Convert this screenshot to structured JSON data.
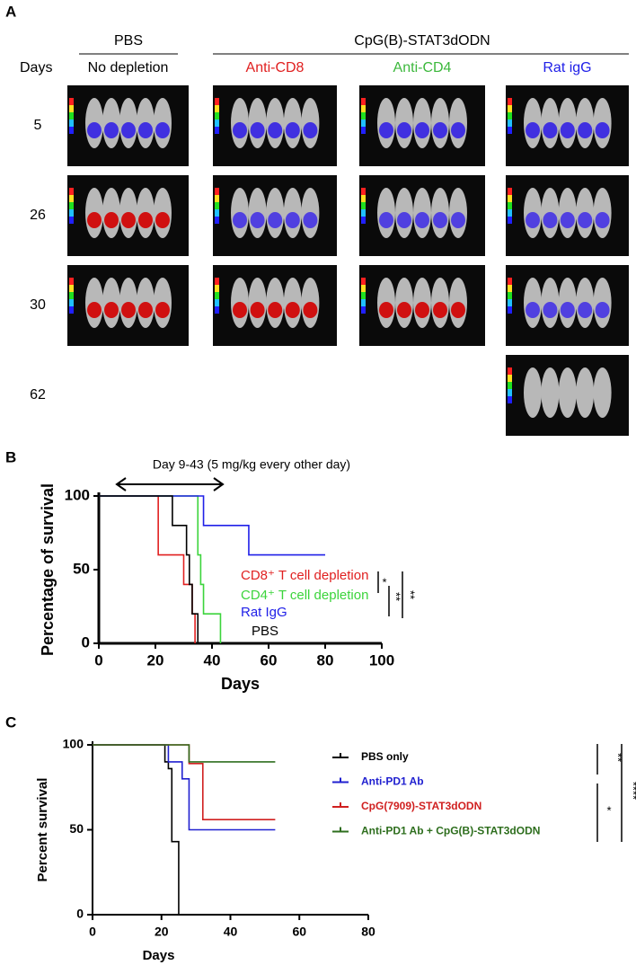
{
  "panel_a": {
    "label": "A",
    "group_left": "PBS",
    "group_right": "CpG(B)-STAT3dODN",
    "days_label": "Days",
    "columns": [
      {
        "name": "No depletion",
        "color": "#000000"
      },
      {
        "name": "Anti-CD8",
        "color": "#e02020"
      },
      {
        "name": "Anti-CD4",
        "color": "#3cb83c"
      },
      {
        "name": "Rat igG",
        "color": "#2020e8"
      }
    ],
    "days": [
      5,
      26,
      30,
      62
    ]
  },
  "chart_data": [
    {
      "type": "step",
      "panel_label": "B",
      "annotation": "Day 9-43 (5 mg/kg every other day)",
      "x_label": "Days",
      "y_label": "Percentage of survival",
      "xlim": [
        0,
        100
      ],
      "xticks": [
        0,
        20,
        40,
        60,
        80,
        100
      ],
      "ylim": [
        0,
        100
      ],
      "yticks": [
        0,
        50,
        100
      ],
      "series": [
        {
          "name": "CD8⁺ T cell depletion",
          "color": "#e02020",
          "x": [
            0,
            21,
            30,
            33,
            34
          ],
          "values": [
            100,
            60,
            40,
            20,
            0
          ]
        },
        {
          "name": "CD4⁺ T cell depletion",
          "color": "#3cd43c",
          "x": [
            0,
            35,
            36,
            37,
            43
          ],
          "values": [
            100,
            60,
            40,
            20,
            0
          ]
        },
        {
          "name": "Rat IgG",
          "color": "#2020e8",
          "x": [
            0,
            37,
            53,
            80
          ],
          "values": [
            100,
            80,
            60,
            60
          ]
        },
        {
          "name": "PBS",
          "color": "#000000",
          "x": [
            0,
            26,
            31,
            32,
            33,
            35
          ],
          "values": [
            100,
            80,
            60,
            40,
            20,
            0
          ]
        }
      ],
      "significance": [
        "*",
        "**",
        "**"
      ]
    },
    {
      "type": "step",
      "panel_label": "C",
      "x_label": "Days",
      "y_label": "Percent survival",
      "xlim": [
        0,
        80
      ],
      "xticks": [
        0,
        20,
        40,
        60,
        80
      ],
      "ylim": [
        0,
        100
      ],
      "yticks": [
        0,
        50,
        100
      ],
      "series": [
        {
          "name": "PBS only",
          "color": "#000000",
          "x": [
            0,
            21,
            22,
            23,
            25
          ],
          "values": [
            100,
            90,
            86,
            43,
            0
          ]
        },
        {
          "name": "Anti-PD1 Ab",
          "color": "#2020d0",
          "x": [
            0,
            22,
            26,
            28,
            53
          ],
          "values": [
            100,
            90,
            80,
            50,
            50
          ]
        },
        {
          "name": "CpG(7909)-STAT3dODN",
          "color": "#d02020",
          "x": [
            0,
            28,
            32,
            53
          ],
          "values": [
            100,
            89,
            56,
            56
          ]
        },
        {
          "name": "Anti-PD1 Ab + CpG(B)-STAT3dODN",
          "color": "#2e6e1e",
          "x": [
            0,
            28,
            53
          ],
          "values": [
            100,
            90,
            90
          ]
        }
      ],
      "significance": [
        "**",
        "*",
        "****"
      ]
    }
  ]
}
